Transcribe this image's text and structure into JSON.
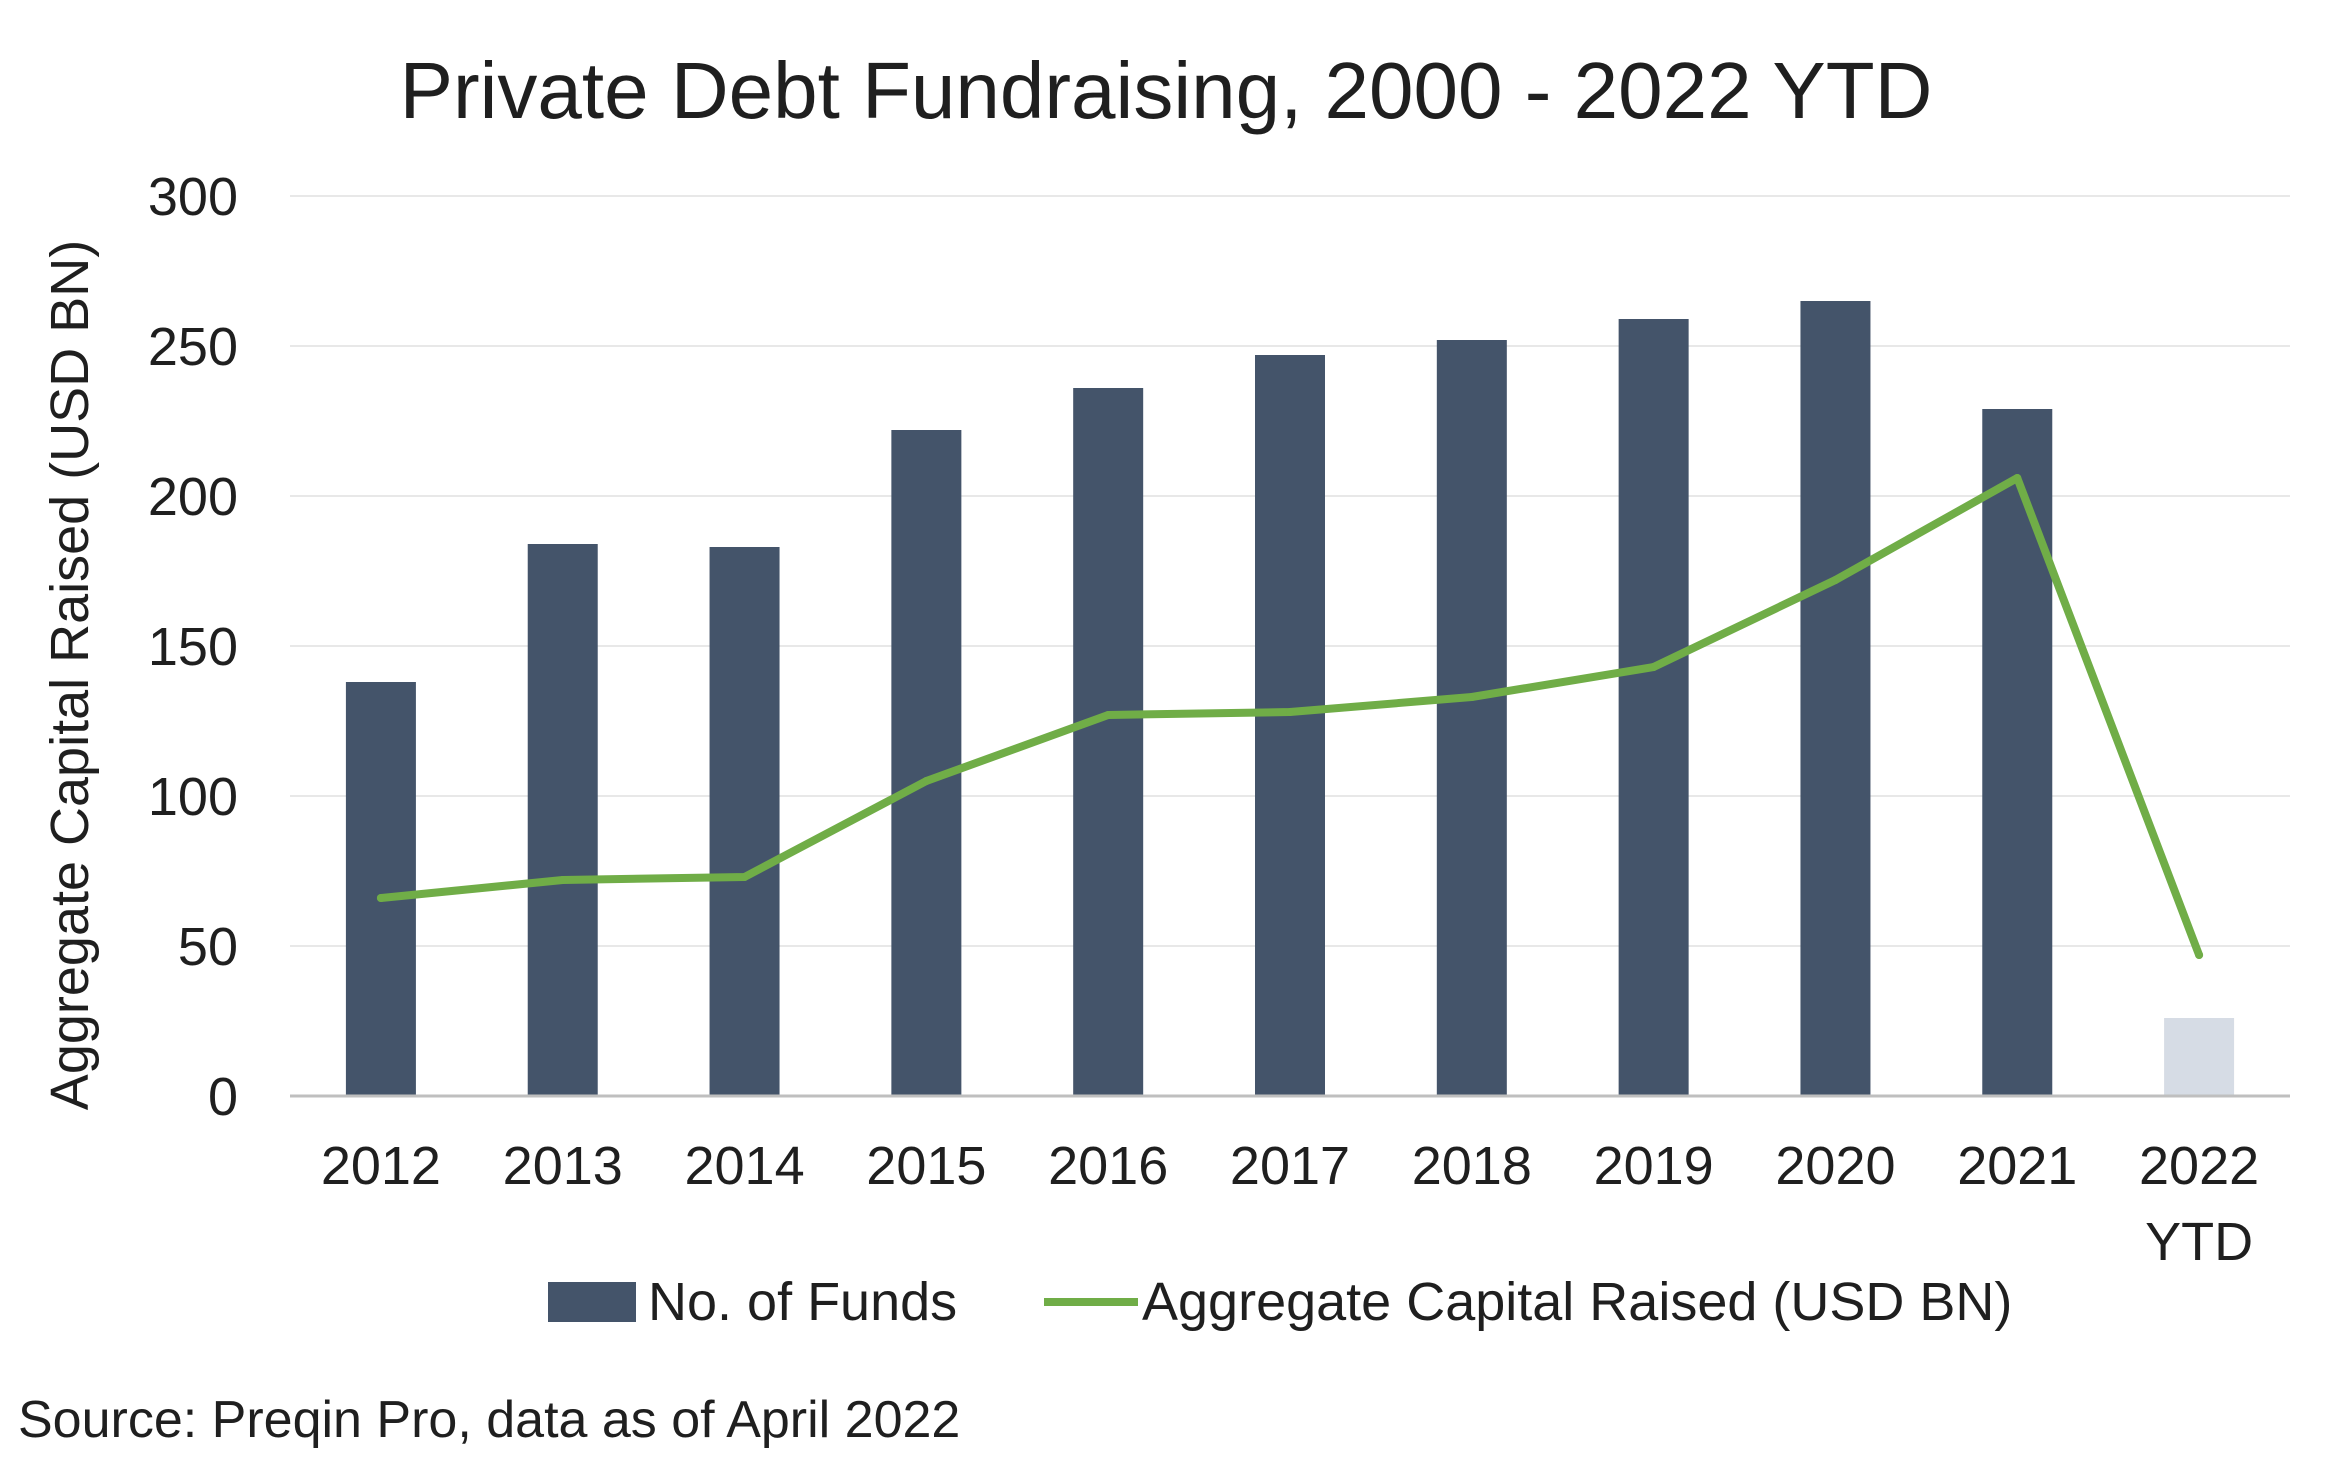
{
  "colors": {
    "bar": "#44546a",
    "bar_ytd": "#d6dce5",
    "line": "#70ad47",
    "grid": "#e8e8e8",
    "axis": "#bfbfbf",
    "text": "#1f1f1f"
  },
  "chart_data": {
    "type": "bar",
    "title": "Private Debt Fundraising, 2000 - 2022 YTD",
    "xlabel": "",
    "ylabel": "Aggregate Capital Raised (USD BN)",
    "ylim": [
      0,
      300
    ],
    "yticks": [
      "0",
      "50",
      "100",
      "150",
      "200",
      "250",
      "300"
    ],
    "grid": true,
    "legend_position": "bottom",
    "categories": [
      [
        "2012"
      ],
      [
        "2013"
      ],
      [
        "2014"
      ],
      [
        "2015"
      ],
      [
        "2016"
      ],
      [
        "2017"
      ],
      [
        "2018"
      ],
      [
        "2019"
      ],
      [
        "2020"
      ],
      [
        "2021"
      ],
      [
        "2022",
        "YTD"
      ]
    ],
    "series": [
      {
        "name": "No. of Funds",
        "type": "bar",
        "values": [
          138,
          184,
          183,
          222,
          236,
          247,
          252,
          259,
          265,
          229,
          26
        ]
      },
      {
        "name": "Aggregate Capital Raised (USD BN)",
        "type": "line",
        "values": [
          66,
          72,
          73,
          105,
          127,
          128,
          133,
          143,
          172,
          206,
          47
        ]
      }
    ]
  },
  "source": "Source: Preqin Pro, data as of April 2022"
}
